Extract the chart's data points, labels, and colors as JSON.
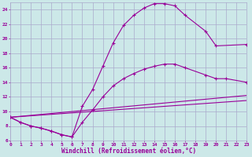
{
  "background_color": "#cce8e8",
  "grid_color": "#aaaacc",
  "line_color": "#990099",
  "marker": "+",
  "xlabel": "Windchill (Refroidissement éolien,°C)",
  "xlim": [
    0,
    23
  ],
  "ylim": [
    6,
    25
  ],
  "yticks": [
    6,
    8,
    10,
    12,
    14,
    16,
    18,
    20,
    22,
    24
  ],
  "xticks": [
    0,
    1,
    2,
    3,
    4,
    5,
    6,
    7,
    8,
    9,
    10,
    11,
    12,
    13,
    14,
    15,
    16,
    17,
    18,
    19,
    20,
    21,
    22,
    23
  ],
  "lines": [
    {
      "x": [
        0,
        1,
        2,
        3,
        4,
        5,
        6,
        7,
        8,
        9,
        10,
        11,
        12,
        13,
        14,
        15,
        16,
        17,
        19,
        20,
        23
      ],
      "y": [
        9.2,
        8.5,
        8.0,
        7.7,
        7.3,
        6.8,
        6.5,
        10.7,
        13.0,
        16.2,
        19.4,
        21.8,
        23.2,
        24.2,
        24.8,
        24.8,
        24.5,
        23.2,
        21.0,
        19.0,
        19.2
      ]
    },
    {
      "x": [
        0,
        1,
        2,
        3,
        4,
        5,
        6,
        7,
        8,
        9,
        10,
        11,
        12,
        13,
        14,
        15,
        16,
        17,
        19,
        20,
        21,
        23
      ],
      "y": [
        9.2,
        8.5,
        8.0,
        7.7,
        7.3,
        6.8,
        6.5,
        8.5,
        10.2,
        12.0,
        13.5,
        14.5,
        15.2,
        15.8,
        16.2,
        16.5,
        16.5,
        16.0,
        15.0,
        14.5,
        14.5,
        14.0
      ]
    },
    {
      "comment": "straight line from (0,9.2) to (23,12.2)",
      "x": [
        0,
        23
      ],
      "y": [
        9.2,
        12.2
      ]
    },
    {
      "comment": "straight line from (0,9.2) to (23,11.5)",
      "x": [
        0,
        23
      ],
      "y": [
        9.2,
        11.5
      ]
    }
  ]
}
